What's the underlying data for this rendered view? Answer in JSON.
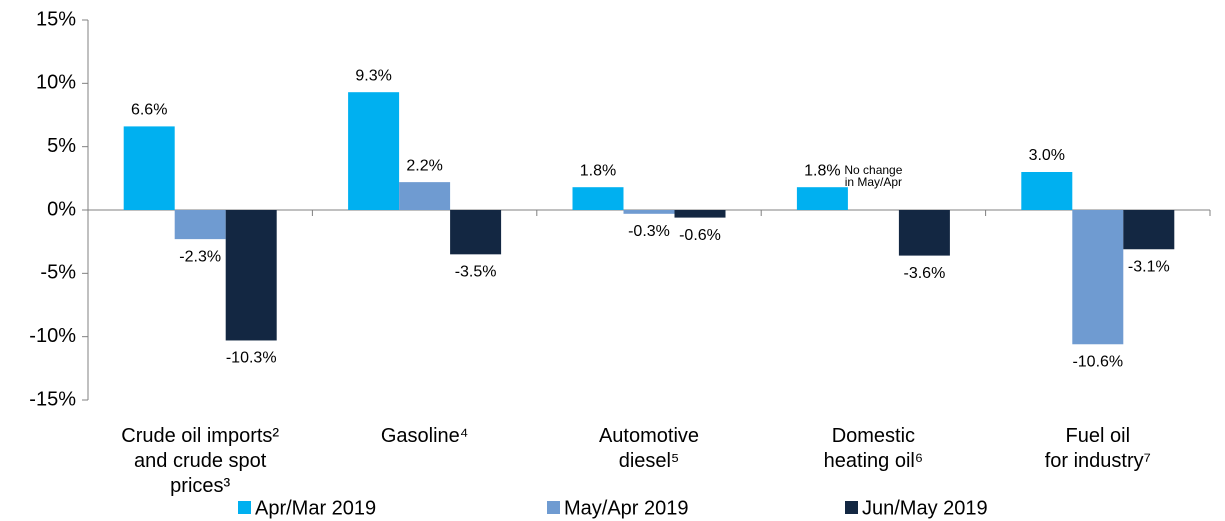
{
  "chart_data": {
    "type": "bar",
    "categories": [
      "Crude oil imports²\nand crude spot\nprices³",
      "Gasoline⁴",
      "Automotive\ndiesel⁵",
      "Domestic\nheating oil⁶",
      "Fuel oil\nfor industry⁷"
    ],
    "series": [
      {
        "name": "Apr/Mar 2019",
        "color": "#00b0f0",
        "values": [
          6.6,
          9.3,
          1.8,
          1.8,
          3.0
        ],
        "value_labels": [
          "6.6%",
          "9.3%",
          "1.8%",
          "1.8%",
          "3.0%"
        ]
      },
      {
        "name": "May/Apr 2019",
        "color": "#6f9bd1",
        "values": [
          -2.3,
          2.2,
          -0.3,
          0,
          -10.6
        ],
        "value_labels": [
          "-2.3%",
          "2.2%",
          "-0.3%",
          null,
          "-10.6%"
        ]
      },
      {
        "name": "Jun/May 2019",
        "color": "#132742",
        "values": [
          -10.3,
          -3.5,
          -0.6,
          -3.6,
          -3.1
        ],
        "value_labels": [
          "-10.3%",
          "-3.5%",
          "-0.6%",
          "-3.6%",
          "-3.1%"
        ]
      }
    ],
    "annotations": [
      "No change in May/Apr"
    ],
    "ylim": [
      -15,
      15
    ],
    "yticks": [
      {
        "value": -15,
        "label": "-15%"
      },
      {
        "value": -10,
        "label": "-10%"
      },
      {
        "value": -5,
        "label": "-5%"
      },
      {
        "value": 0,
        "label": "0%"
      },
      {
        "value": 5,
        "label": "5%"
      },
      {
        "value": 10,
        "label": "10%"
      },
      {
        "value": 15,
        "label": "15%"
      }
    ],
    "grid": false,
    "legend": "bottom"
  }
}
